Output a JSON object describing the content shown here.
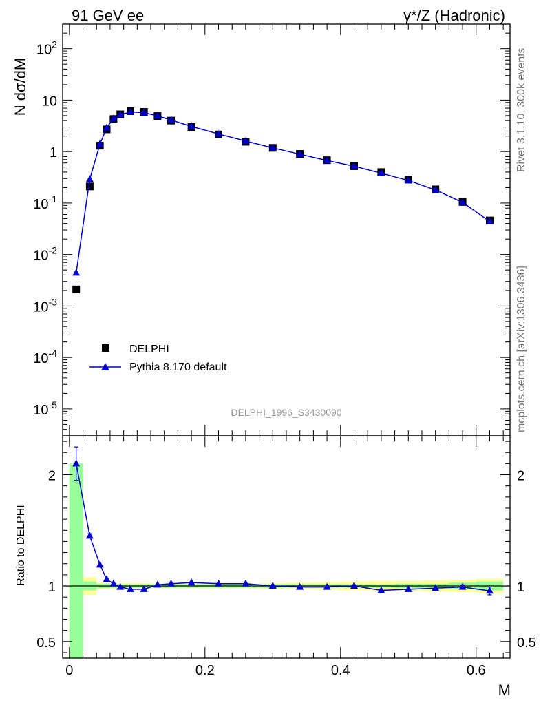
{
  "header": {
    "left": "91 GeV ee",
    "right": "γ*/Z (Hadronic)"
  },
  "side_text": {
    "rivet": "Rivet 3.1.10,  300k events",
    "mcplots": "mcplots.cern.ch [arXiv:1306.3436]"
  },
  "analysis_id": "DELPHI_1996_S3430090",
  "chart_data": [
    {
      "type": "scatter",
      "ylabel": "N dσ/dM",
      "yscale": "log",
      "ylim": [
        3e-06,
        300
      ],
      "ytick_labels": [
        "10^2",
        "10",
        "1",
        "10^-1",
        "10^-2",
        "10^-3",
        "10^-4",
        "10^-5"
      ],
      "legend_position": "lower-left",
      "colors": {
        "DELPHI": "#000000",
        "Pythia 8.170 default": "#0000cc"
      },
      "series": [
        {
          "name": "DELPHI",
          "marker": "square",
          "x": [
            0.01,
            0.03,
            0.045,
            0.055,
            0.065,
            0.075,
            0.09,
            0.11,
            0.13,
            0.15,
            0.18,
            0.22,
            0.26,
            0.3,
            0.34,
            0.38,
            0.42,
            0.46,
            0.5,
            0.54,
            0.58,
            0.62
          ],
          "y": [
            0.0021,
            0.21,
            1.3,
            2.7,
            4.3,
            5.3,
            6.1,
            5.9,
            4.9,
            4.0,
            3.0,
            2.15,
            1.55,
            1.18,
            0.9,
            0.68,
            0.52,
            0.4,
            0.285,
            0.185,
            0.105,
            0.046
          ]
        },
        {
          "name": "Pythia 8.170 default",
          "marker": "triangle",
          "x": [
            0.01,
            0.03,
            0.045,
            0.055,
            0.065,
            0.075,
            0.09,
            0.11,
            0.13,
            0.15,
            0.18,
            0.22,
            0.26,
            0.3,
            0.34,
            0.38,
            0.42,
            0.46,
            0.5,
            0.54,
            0.58,
            0.62
          ],
          "y": [
            0.0044,
            0.29,
            1.4,
            2.9,
            4.4,
            5.2,
            5.9,
            5.7,
            4.95,
            4.1,
            3.08,
            2.2,
            1.6,
            1.18,
            0.89,
            0.67,
            0.52,
            0.38,
            0.275,
            0.18,
            0.103,
            0.044
          ]
        }
      ]
    },
    {
      "type": "scatter",
      "xlabel": "M",
      "ylabel": "Ratio to DELPHI",
      "xlim": [
        -0.01,
        0.65
      ],
      "ylim": [
        0.35,
        2.35
      ],
      "xticks": [
        0,
        0.2,
        0.4,
        0.6
      ],
      "xtick_labels": [
        "0",
        "0.2",
        "0.4",
        "0.6"
      ],
      "yticks": [
        0.5,
        1,
        2
      ],
      "ytick_labels": [
        "0.5",
        "1",
        "2"
      ],
      "series": [
        {
          "name": "Pythia 8.170 default",
          "x": [
            0.01,
            0.03,
            0.045,
            0.055,
            0.065,
            0.075,
            0.09,
            0.11,
            0.13,
            0.15,
            0.18,
            0.22,
            0.26,
            0.3,
            0.34,
            0.38,
            0.42,
            0.46,
            0.5,
            0.54,
            0.58,
            0.62
          ],
          "y": [
            2.1,
            1.45,
            1.19,
            1.06,
            1.02,
            0.99,
            0.97,
            0.97,
            1.01,
            1.02,
            1.03,
            1.02,
            1.02,
            1.0,
            0.99,
            0.99,
            1.0,
            0.96,
            0.97,
            0.98,
            0.99,
            0.955
          ],
          "yerr": [
            0.15,
            0.02,
            0.01,
            0.01,
            0.01,
            0.01,
            0.01,
            0.01,
            0.01,
            0.01,
            0.01,
            0.01,
            0.01,
            0.01,
            0.01,
            0.01,
            0.01,
            0.01,
            0.01,
            0.01,
            0.02,
            0.035
          ]
        }
      ],
      "bands": {
        "x_edges": [
          0.0,
          0.02,
          0.04,
          0.05,
          0.06,
          0.07,
          0.08,
          0.1,
          0.12,
          0.14,
          0.16,
          0.2,
          0.24,
          0.28,
          0.32,
          0.36,
          0.4,
          0.44,
          0.48,
          0.52,
          0.56,
          0.6,
          0.64
        ],
        "stat_err": [
          1.1,
          0.04,
          0.02,
          0.02,
          0.015,
          0.015,
          0.015,
          0.015,
          0.015,
          0.015,
          0.015,
          0.015,
          0.015,
          0.015,
          0.015,
          0.015,
          0.015,
          0.015,
          0.02,
          0.02,
          0.03,
          0.04
        ],
        "total_err": [
          1.1,
          0.08,
          0.03,
          0.025,
          0.025,
          0.025,
          0.025,
          0.025,
          0.02,
          0.02,
          0.02,
          0.02,
          0.02,
          0.025,
          0.03,
          0.035,
          0.04,
          0.045,
          0.045,
          0.05,
          0.055,
          0.065
        ],
        "stat_color": "#99ff99",
        "total_color": "#ffff99"
      }
    }
  ]
}
